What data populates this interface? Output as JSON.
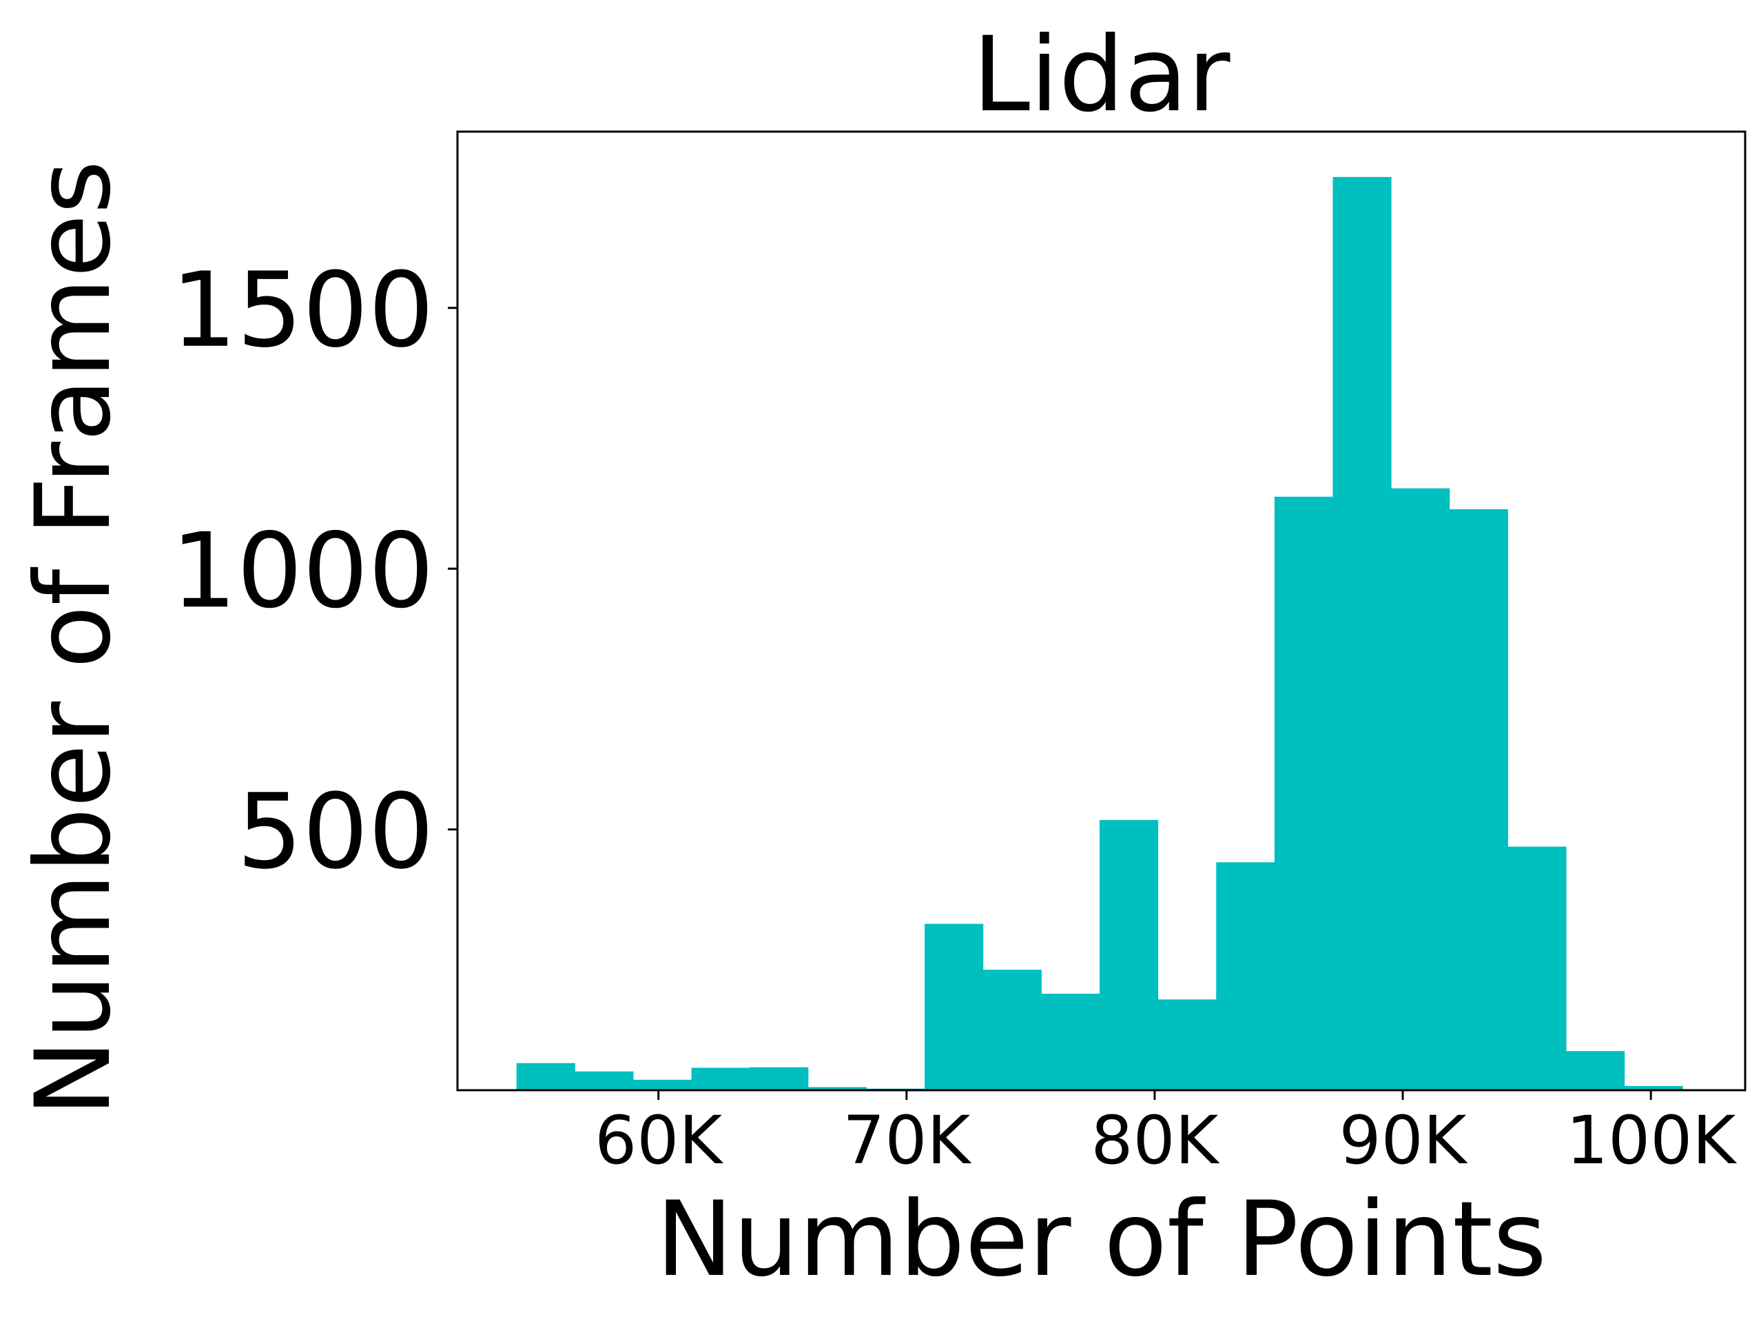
{
  "chart_data": {
    "type": "bar",
    "title": "Lidar",
    "xlabel": "Number of Points",
    "ylabel": "Number of Frames",
    "xlim": [
      51900,
      103800
    ],
    "ylim": [
      0,
      1838
    ],
    "x_ticks": [
      {
        "value": 60000,
        "label": "60K"
      },
      {
        "value": 70000,
        "label": "70K"
      },
      {
        "value": 80000,
        "label": "80K"
      },
      {
        "value": 90000,
        "label": "90K"
      },
      {
        "value": 100000,
        "label": "100K"
      }
    ],
    "y_ticks": [
      {
        "value": 500,
        "label": "500"
      },
      {
        "value": 1000,
        "label": "1000"
      },
      {
        "value": 1500,
        "label": "1500"
      }
    ],
    "grid": false,
    "bar_color": "#00BFBF",
    "bins": [
      {
        "x0": 54280,
        "x1": 56630,
        "count": 52
      },
      {
        "x0": 56630,
        "x1": 58980,
        "count": 36
      },
      {
        "x0": 58980,
        "x1": 61330,
        "count": 20
      },
      {
        "x0": 61330,
        "x1": 63680,
        "count": 43
      },
      {
        "x0": 63680,
        "x1": 66030,
        "count": 44
      },
      {
        "x0": 66030,
        "x1": 68380,
        "count": 6
      },
      {
        "x0": 68380,
        "x1": 70730,
        "count": 3
      },
      {
        "x0": 70730,
        "x1": 73080,
        "count": 319
      },
      {
        "x0": 73080,
        "x1": 75430,
        "count": 231
      },
      {
        "x0": 75430,
        "x1": 77780,
        "count": 185
      },
      {
        "x0": 77780,
        "x1": 80130,
        "count": 518
      },
      {
        "x0": 80130,
        "x1": 82480,
        "count": 174
      },
      {
        "x0": 82480,
        "x1": 84830,
        "count": 437
      },
      {
        "x0": 84830,
        "x1": 87180,
        "count": 1138
      },
      {
        "x0": 87180,
        "x1": 89530,
        "count": 1751
      },
      {
        "x0": 89530,
        "x1": 91880,
        "count": 1154
      },
      {
        "x0": 91880,
        "x1": 94230,
        "count": 1114
      },
      {
        "x0": 94230,
        "x1": 96580,
        "count": 467
      },
      {
        "x0": 96580,
        "x1": 98930,
        "count": 75
      },
      {
        "x0": 98930,
        "x1": 101280,
        "count": 8
      }
    ]
  }
}
